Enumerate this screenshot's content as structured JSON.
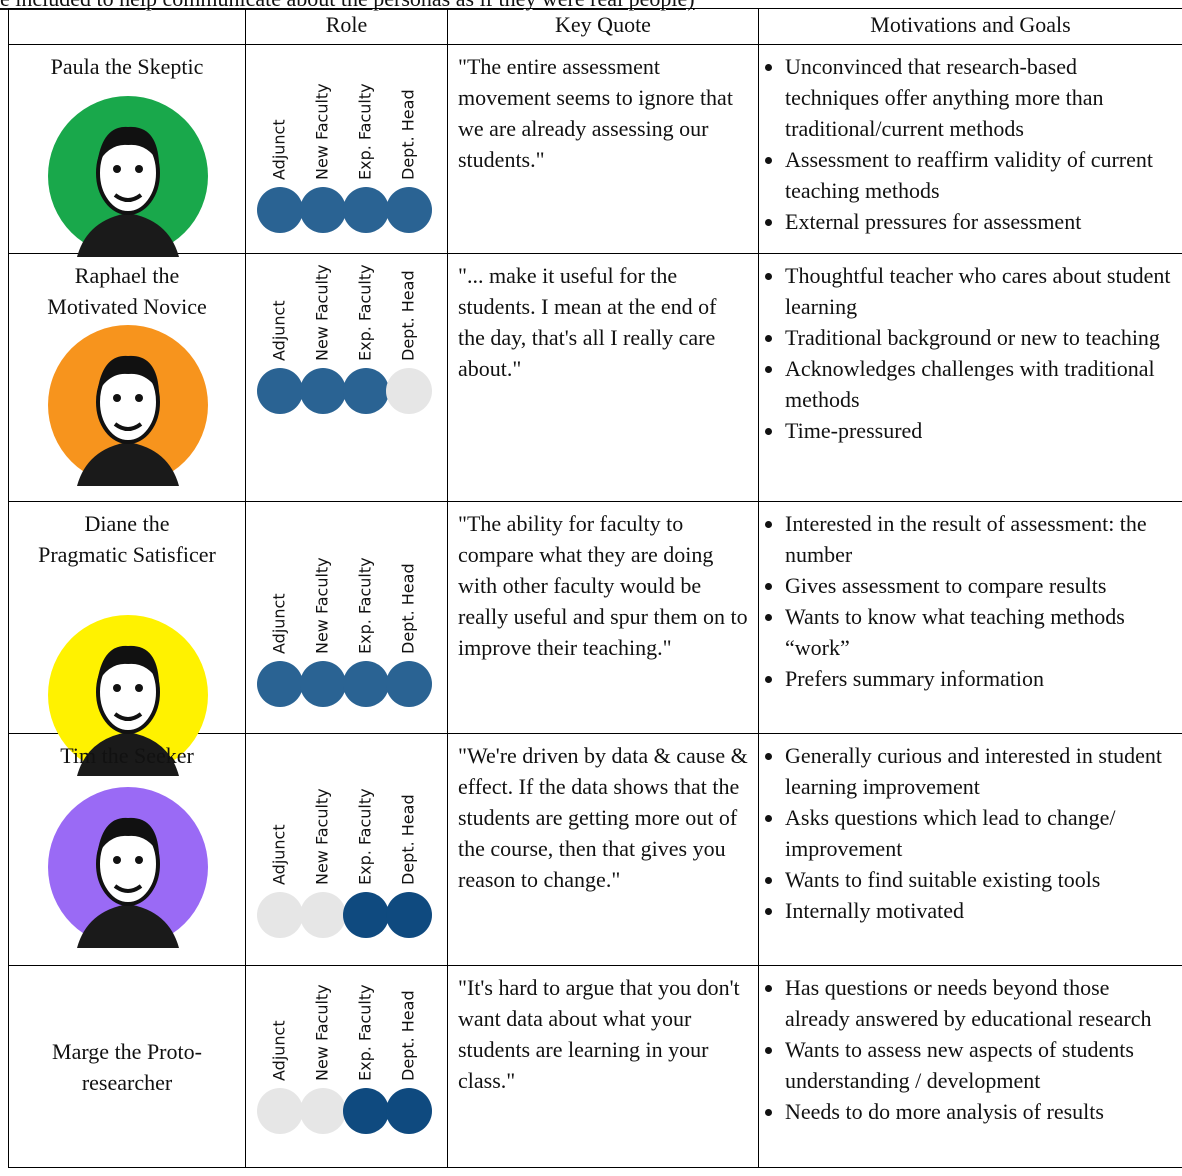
{
  "header": {
    "caption": "e included to help communicate about the personas as if they were real people)"
  },
  "table": {
    "columns": [
      "Role",
      "Key Quote",
      "Motivations and Goals"
    ],
    "rows": [
      {
        "name": [
          "Paula the Skeptic"
        ],
        "portrait_color": "#19a84b",
        "role_color": "#2a6393",
        "roles": [
          {
            "label": "Adjunct",
            "active": true
          },
          {
            "label": "New Faculty",
            "active": true
          },
          {
            "label": "Exp. Faculty",
            "active": true
          },
          {
            "label": "Dept. Head",
            "active": true
          }
        ],
        "quote": "\"The entire assessment movement seems to ignore that we are already assessing our students.\"",
        "goals": [
          "Unconvinced that research-based techniques offer anything more than traditional/current methods",
          "Assessment to reaffirm validity of current teaching methods",
          "External pressures for assessment"
        ]
      },
      {
        "name": [
          "Raphael the",
          "Motivated Novice"
        ],
        "portrait_color": "#f7941d",
        "role_color": "#2a6393",
        "roles": [
          {
            "label": "Adjunct",
            "active": true
          },
          {
            "label": "New Faculty",
            "active": true
          },
          {
            "label": "Exp. Faculty",
            "active": true
          },
          {
            "label": "Dept. Head",
            "active": false
          }
        ],
        "quote": "\"... make it useful for the students. I mean at the end of the day, that's all I really care about.\"",
        "goals": [
          "Thoughtful teacher who cares about student learning",
          "Traditional background or new to teaching",
          "Acknowledges challenges with traditional methods",
          "Time-pressured"
        ]
      },
      {
        "name": [
          "Diane the",
          "Pragmatic Satisficer"
        ],
        "portrait_color": "#fff200",
        "role_color": "#2a6393",
        "roles": [
          {
            "label": "Adjunct",
            "active": true
          },
          {
            "label": "New Faculty",
            "active": true
          },
          {
            "label": "Exp. Faculty",
            "active": true
          },
          {
            "label": "Dept. Head",
            "active": true
          }
        ],
        "quote": "\"The ability for faculty to compare what they are doing with other faculty would be really useful and spur them on to improve their teaching.\"",
        "goals": [
          "Interested in the result of assessment: the number",
          "Gives assessment to compare results",
          "Wants to know what teaching methods “work”",
          "Prefers summary information"
        ]
      },
      {
        "name": [
          "Tim the Seeker"
        ],
        "portrait_color": "#9a6af5",
        "role_color": "#0f4a7f",
        "roles": [
          {
            "label": "Adjunct",
            "active": false
          },
          {
            "label": "New Faculty",
            "active": false
          },
          {
            "label": "Exp. Faculty",
            "active": true
          },
          {
            "label": "Dept. Head",
            "active": true
          }
        ],
        "quote": "\"We're driven by data & cause & effect. If the data shows that the students are getting more out of the course, then that gives you reason to change.\"",
        "goals": [
          "Generally curious and interested in student learning improvement",
          "Asks questions which lead to change/ improvement",
          "Wants to find suitable existing tools",
          "Internally motivated"
        ]
      },
      {
        "name": [
          "Marge the Proto-",
          "researcher"
        ],
        "role_color": "#0f4a7f",
        "roles": [
          {
            "label": "Adjunct",
            "active": false
          },
          {
            "label": "New Faculty",
            "active": false
          },
          {
            "label": "Exp. Faculty",
            "active": true
          },
          {
            "label": "Dept. Head",
            "active": true
          }
        ],
        "quote": "\"It's hard to argue that you don't want data about what your students are learning in your class.\"",
        "goals": [
          "Has questions or needs beyond those already answered by educational research",
          "Wants to assess new aspects of students understanding / development",
          "Needs to do more analysis of results"
        ]
      }
    ]
  }
}
